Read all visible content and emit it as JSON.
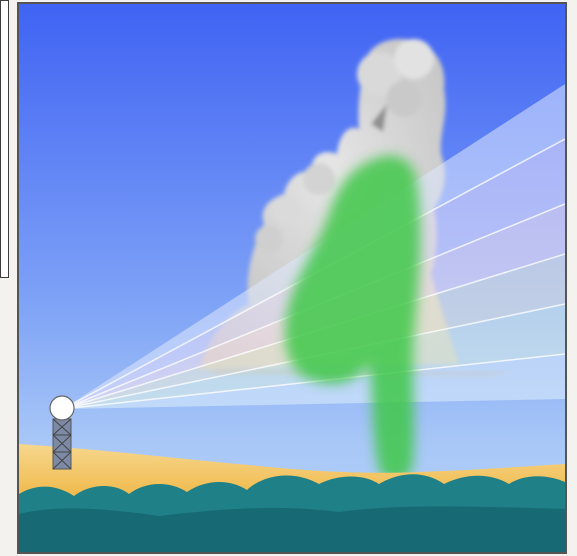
{
  "scene": {
    "subject": "radar-beams-through-thunderstorm",
    "colors": {
      "sky_top": "#4467f3",
      "sky_bottom": "#a9c8f7",
      "sand": "#f0b94a",
      "vegetation": "#1f7f86",
      "cloud": "#cfcfcf",
      "precipitation": "#46c94a",
      "frame": "#555555"
    },
    "icons": [
      "radar-tower-icon"
    ]
  }
}
